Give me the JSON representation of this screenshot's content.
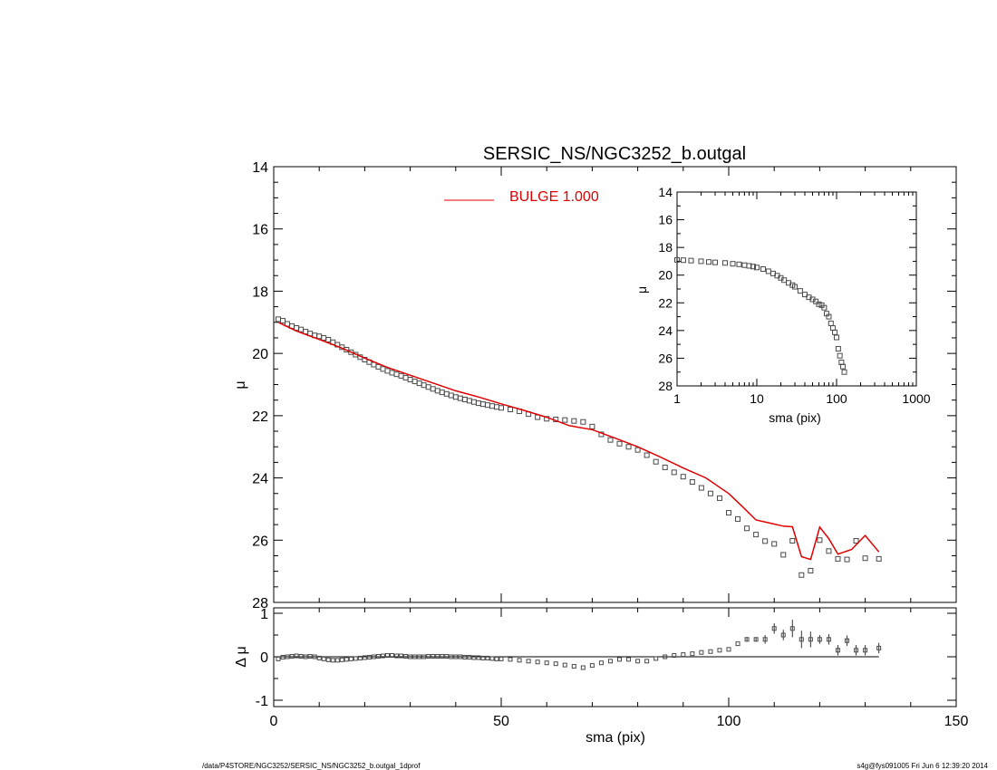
{
  "footer": {
    "left": "/data/P4STORE/NGC3252/SERSIC_NS/NGC3252_b.outgal_1dprof",
    "right": "s4g@fys091005  Fri Jun  6 12:39:20 2014"
  },
  "chart_data": [
    {
      "panel": "main",
      "type": "scatter",
      "title": "SERSIC_NS/NGC3252_b.outgal",
      "xlabel": "",
      "ylabel": "μ",
      "xlim": [
        0,
        150
      ],
      "ylim": [
        28,
        14
      ],
      "y_inverted": true,
      "yticks": [
        "14",
        "16",
        "18",
        "20",
        "22",
        "24",
        "26",
        "28"
      ],
      "legend": {
        "placement": "top-left",
        "entries": [
          {
            "label": "BULGE  1.000",
            "color": "#e00000"
          }
        ]
      },
      "series": [
        {
          "kind": "points",
          "color": "#555555",
          "x": [
            1,
            2,
            3,
            4,
            5,
            6,
            7,
            8,
            9,
            10,
            11,
            12,
            13,
            14,
            15,
            16,
            17,
            18,
            19,
            20,
            21,
            22,
            23,
            24,
            25,
            26,
            27,
            28,
            29,
            30,
            31,
            32,
            33,
            34,
            35,
            36,
            37,
            38,
            39,
            40,
            41,
            42,
            43,
            44,
            45,
            46,
            47,
            48,
            49,
            50,
            52,
            54,
            56,
            58,
            60,
            62,
            64,
            66,
            68,
            70,
            72,
            74,
            76,
            78,
            80,
            82,
            84,
            86,
            88,
            90,
            92,
            94,
            96,
            98,
            100,
            102,
            104,
            106,
            108,
            110,
            112,
            114,
            116,
            118,
            120,
            122,
            124,
            126,
            128,
            130,
            133
          ],
          "y": [
            18.9,
            18.95,
            19.05,
            19.12,
            19.18,
            19.23,
            19.3,
            19.36,
            19.42,
            19.45,
            19.5,
            19.56,
            19.64,
            19.72,
            19.8,
            19.88,
            19.96,
            20.04,
            20.12,
            20.2,
            20.28,
            20.36,
            20.43,
            20.5,
            20.56,
            20.62,
            20.67,
            20.72,
            20.78,
            20.84,
            20.9,
            20.96,
            21.02,
            21.08,
            21.14,
            21.2,
            21.25,
            21.3,
            21.35,
            21.4,
            21.44,
            21.48,
            21.52,
            21.56,
            21.6,
            21.63,
            21.66,
            21.69,
            21.72,
            21.75,
            21.8,
            21.86,
            21.95,
            22.05,
            22.1,
            22.12,
            22.14,
            22.17,
            22.2,
            22.35,
            22.6,
            22.78,
            22.9,
            23.0,
            23.1,
            23.27,
            23.48,
            23.66,
            23.82,
            23.96,
            24.13,
            24.32,
            24.5,
            24.65,
            25.12,
            25.32,
            25.62,
            25.82,
            26.03,
            26.12,
            26.47,
            26.02,
            27.12,
            26.98,
            26.0,
            26.35,
            26.6,
            26.62,
            26.02,
            26.58,
            26.6
          ]
        },
        {
          "kind": "line",
          "name": "BULGE  1.000",
          "color": "#e00000",
          "x": [
            1,
            5,
            10,
            15,
            20,
            25,
            30,
            35,
            40,
            45,
            50,
            55,
            60,
            65,
            70,
            75,
            80,
            85,
            90,
            95,
            100,
            103,
            106,
            109,
            112,
            114,
            116,
            118,
            120,
            122,
            124,
            127,
            130,
            133
          ],
          "y": [
            19.0,
            19.28,
            19.55,
            19.83,
            20.15,
            20.45,
            20.7,
            20.95,
            21.2,
            21.4,
            21.62,
            21.83,
            22.05,
            22.32,
            22.45,
            22.72,
            23.0,
            23.33,
            23.68,
            24.0,
            24.5,
            24.92,
            25.35,
            25.45,
            25.55,
            25.57,
            26.53,
            26.62,
            25.58,
            25.95,
            26.45,
            26.3,
            25.85,
            26.38
          ]
        }
      ]
    },
    {
      "panel": "inset",
      "type": "scatter",
      "xlabel": "sma (pix)",
      "ylabel": "μ",
      "xscale": "log",
      "xlim": [
        1,
        1000
      ],
      "ylim": [
        28,
        14
      ],
      "y_inverted": true,
      "xticks": [
        "1",
        "10",
        "100",
        "1000"
      ],
      "yticks": [
        "14",
        "16",
        "18",
        "20",
        "22",
        "24",
        "26",
        "28"
      ],
      "series": [
        {
          "kind": "points",
          "color": "#444444",
          "x": [
            1,
            1.2,
            1.5,
            2,
            2.5,
            3,
            4,
            5,
            6,
            7,
            8,
            9,
            10,
            12,
            14,
            16,
            18,
            20,
            22,
            25,
            28,
            30,
            35,
            40,
            45,
            50,
            55,
            60,
            65,
            70,
            75,
            80,
            85,
            90,
            95,
            100,
            105,
            110,
            115,
            120,
            125
          ],
          "y": [
            18.9,
            18.92,
            18.95,
            19.0,
            19.05,
            19.08,
            19.12,
            19.18,
            19.22,
            19.28,
            19.33,
            19.38,
            19.45,
            19.56,
            19.72,
            19.88,
            20.04,
            20.2,
            20.36,
            20.56,
            20.72,
            20.84,
            21.14,
            21.4,
            21.6,
            21.75,
            21.9,
            22.1,
            22.17,
            22.35,
            22.78,
            23.0,
            23.48,
            23.82,
            24.13,
            24.5,
            25.32,
            25.82,
            26.3,
            26.6,
            27.0
          ]
        }
      ]
    },
    {
      "panel": "residual",
      "type": "scatter",
      "xlabel": "sma (pix)",
      "ylabel": "Δ μ",
      "xlim": [
        0,
        150
      ],
      "ylim": [
        -1.05,
        1.05
      ],
      "xticks": [
        "0",
        "50",
        "100",
        "150"
      ],
      "yticks": [
        "1",
        "0",
        "-1"
      ],
      "series": [
        {
          "kind": "points",
          "color": "#555555",
          "x": [
            1,
            2,
            3,
            4,
            5,
            6,
            7,
            8,
            9,
            10,
            11,
            12,
            13,
            14,
            15,
            16,
            17,
            18,
            19,
            20,
            21,
            22,
            23,
            24,
            25,
            26,
            27,
            28,
            29,
            30,
            31,
            32,
            33,
            34,
            35,
            36,
            37,
            38,
            39,
            40,
            41,
            42,
            43,
            44,
            45,
            46,
            47,
            48,
            49,
            50,
            52,
            54,
            56,
            58,
            60,
            62,
            64,
            66,
            68,
            70,
            72,
            74,
            76,
            78,
            80,
            82,
            84,
            86,
            88,
            90,
            92,
            94,
            96,
            98,
            100,
            102,
            104,
            106,
            108,
            110,
            112,
            114,
            116,
            118,
            120,
            122,
            124,
            126,
            128,
            130,
            133
          ],
          "y": [
            -0.05,
            -0.01,
            0.0,
            0.01,
            0.02,
            0.01,
            0.0,
            0.01,
            0.0,
            -0.03,
            -0.05,
            -0.07,
            -0.08,
            -0.08,
            -0.07,
            -0.06,
            -0.05,
            -0.04,
            -0.03,
            -0.02,
            -0.01,
            0.0,
            0.01,
            0.02,
            0.03,
            0.03,
            0.02,
            0.02,
            0.01,
            0.0,
            0.0,
            0.0,
            0.0,
            0.01,
            0.01,
            0.01,
            0.01,
            0.01,
            0.0,
            0.0,
            0.0,
            -0.01,
            -0.01,
            -0.02,
            -0.02,
            -0.03,
            -0.03,
            -0.04,
            -0.05,
            -0.05,
            -0.06,
            -0.08,
            -0.1,
            -0.12,
            -0.14,
            -0.16,
            -0.19,
            -0.22,
            -0.25,
            -0.2,
            -0.14,
            -0.1,
            -0.06,
            -0.06,
            -0.1,
            -0.1,
            -0.04,
            0.0,
            0.03,
            0.05,
            0.07,
            0.1,
            0.12,
            0.15,
            0.17,
            0.3,
            0.4,
            0.4,
            0.4,
            0.65,
            0.5,
            0.65,
            0.4,
            0.4,
            0.4,
            0.4,
            0.15,
            0.37,
            0.15,
            0.15,
            0.2
          ],
          "err": [
            0,
            0,
            0,
            0,
            0,
            0,
            0,
            0,
            0,
            0,
            0,
            0,
            0,
            0,
            0,
            0,
            0,
            0,
            0,
            0,
            0,
            0,
            0,
            0,
            0,
            0,
            0,
            0,
            0,
            0,
            0,
            0,
            0,
            0,
            0,
            0,
            0,
            0,
            0,
            0,
            0,
            0,
            0,
            0,
            0,
            0,
            0,
            0,
            0,
            0,
            0,
            0,
            0,
            0,
            0,
            0,
            0,
            0,
            0,
            0,
            0,
            0,
            0,
            0,
            0,
            0,
            0,
            0,
            0,
            0,
            0,
            0,
            0,
            0,
            0,
            0,
            0.05,
            0.05,
            0.1,
            0.12,
            0.12,
            0.2,
            0.2,
            0.18,
            0.1,
            0.12,
            0.12,
            0.12,
            0.12,
            0.12,
            0.12
          ]
        }
      ]
    }
  ]
}
